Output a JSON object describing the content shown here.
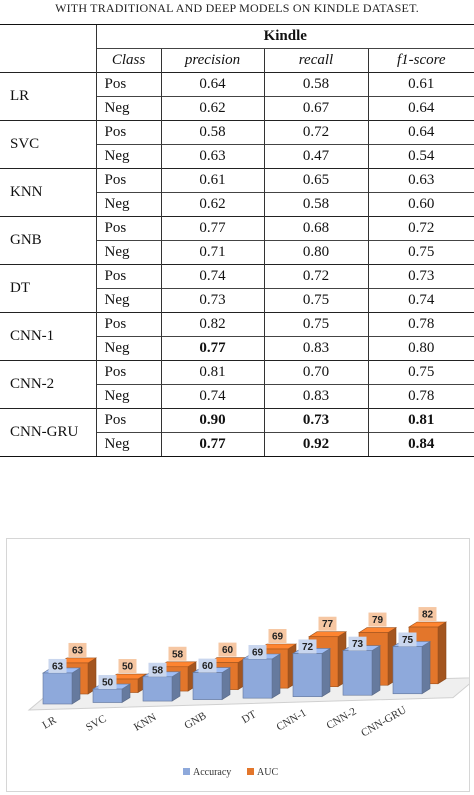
{
  "caption": "WITH TRADITIONAL AND DEEP MODELS ON KINDLE DATASET.",
  "table": {
    "dataset_header": "Kindle",
    "columns": [
      "Class",
      "precision",
      "recall",
      "f1-score"
    ],
    "rows": [
      {
        "model": "LR",
        "classes": [
          {
            "cls": "Pos",
            "values": [
              "0.64",
              "0.58",
              "0.61"
            ],
            "bold": [
              false,
              false,
              false
            ]
          },
          {
            "cls": "Neg",
            "values": [
              "0.62",
              "0.67",
              "0.64"
            ],
            "bold": [
              false,
              false,
              false
            ]
          }
        ]
      },
      {
        "model": "SVC",
        "classes": [
          {
            "cls": "Pos",
            "values": [
              "0.58",
              "0.72",
              "0.64"
            ],
            "bold": [
              false,
              false,
              false
            ]
          },
          {
            "cls": "Neg",
            "values": [
              "0.63",
              "0.47",
              "0.54"
            ],
            "bold": [
              false,
              false,
              false
            ]
          }
        ]
      },
      {
        "model": "KNN",
        "classes": [
          {
            "cls": "Pos",
            "values": [
              "0.61",
              "0.65",
              "0.63"
            ],
            "bold": [
              false,
              false,
              false
            ]
          },
          {
            "cls": "Neg",
            "values": [
              "0.62",
              "0.58",
              "0.60"
            ],
            "bold": [
              false,
              false,
              false
            ]
          }
        ]
      },
      {
        "model": "GNB",
        "classes": [
          {
            "cls": "Pos",
            "values": [
              "0.77",
              "0.68",
              "0.72"
            ],
            "bold": [
              false,
              false,
              false
            ]
          },
          {
            "cls": "Neg",
            "values": [
              "0.71",
              "0.80",
              "0.75"
            ],
            "bold": [
              false,
              false,
              false
            ]
          }
        ]
      },
      {
        "model": "DT",
        "classes": [
          {
            "cls": "Pos",
            "values": [
              "0.74",
              "0.72",
              "0.73"
            ],
            "bold": [
              false,
              false,
              false
            ]
          },
          {
            "cls": "Neg",
            "values": [
              "0.73",
              "0.75",
              "0.74"
            ],
            "bold": [
              false,
              false,
              false
            ]
          }
        ]
      },
      {
        "model": "CNN-1",
        "classes": [
          {
            "cls": "Pos",
            "values": [
              "0.82",
              "0.75",
              "0.78"
            ],
            "bold": [
              false,
              false,
              false
            ]
          },
          {
            "cls": "Neg",
            "values": [
              "0.77",
              "0.83",
              "0.80"
            ],
            "bold": [
              true,
              false,
              false
            ]
          }
        ]
      },
      {
        "model": "CNN-2",
        "classes": [
          {
            "cls": "Pos",
            "values": [
              "0.81",
              "0.70",
              "0.75"
            ],
            "bold": [
              false,
              false,
              false
            ]
          },
          {
            "cls": "Neg",
            "values": [
              "0.74",
              "0.83",
              "0.78"
            ],
            "bold": [
              false,
              false,
              false
            ]
          }
        ]
      },
      {
        "model": "CNN-GRU",
        "classes": [
          {
            "cls": "Pos",
            "values": [
              "0.90",
              "0.73",
              "0.81"
            ],
            "bold": [
              true,
              true,
              true
            ]
          },
          {
            "cls": "Neg",
            "values": [
              "0.77",
              "0.92",
              "0.84"
            ],
            "bold": [
              true,
              true,
              true
            ]
          }
        ]
      }
    ]
  },
  "chart_data": {
    "type": "bar",
    "categories": [
      "LR",
      "SVC",
      "KNN",
      "GNB",
      "DT",
      "CNN-1",
      "CNN-2",
      "CNN-GRU"
    ],
    "series": [
      {
        "name": "Accuracy",
        "values": [
          63,
          50,
          58,
          60,
          69,
          72,
          73,
          75
        ],
        "color": "#8ea9db"
      },
      {
        "name": "AUC",
        "values": [
          63,
          50,
          58,
          60,
          69,
          77,
          79,
          82
        ],
        "color": "#e3762b"
      }
    ],
    "ylim": [
      40,
      90
    ],
    "legend_position": "bottom",
    "style": "3d-clustered-column",
    "grid": false
  }
}
